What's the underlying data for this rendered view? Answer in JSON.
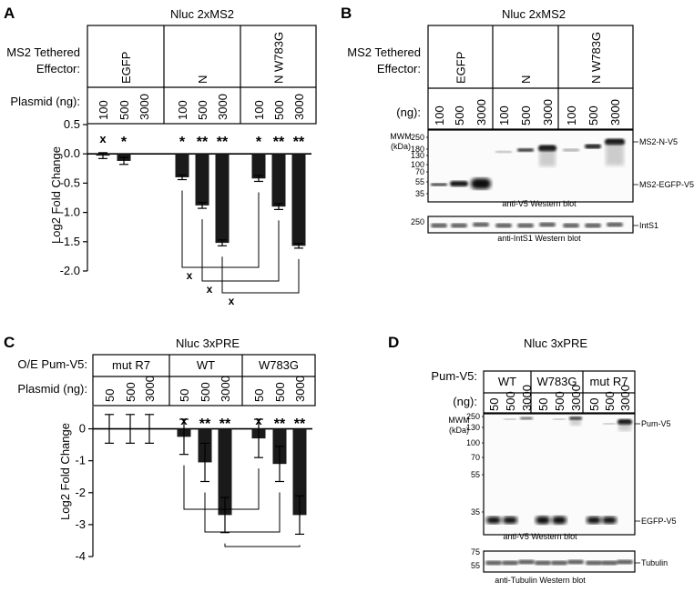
{
  "panels": {
    "a": {
      "letter": "A",
      "title": "Nluc 2xMS2",
      "row1_label": [
        "MS2 Tethered",
        "Effector:"
      ],
      "groups": [
        "EGFP",
        "N",
        "N W783G"
      ],
      "row2_label": "Plasmid (ng):",
      "doses": [
        "100",
        "500",
        "3000",
        "100",
        "500",
        "3000",
        "100",
        "500",
        "3000"
      ],
      "ylabel": "Log2  Fold Change",
      "yticks": [
        "0.5",
        "0.0",
        "-0.5",
        "-1.0",
        "-1.5",
        "-2.0"
      ],
      "sig": [
        "x",
        "*",
        "",
        "*",
        "**",
        "**",
        "*",
        "**",
        "**"
      ],
      "bracket_marks": [
        "x",
        "x",
        "x"
      ]
    },
    "b": {
      "letter": "B",
      "title": "Nluc 2xMS2",
      "row1_label": [
        "MS2 Tethered",
        "Effector:"
      ],
      "groups": [
        "EGFP",
        "N",
        "N W783G"
      ],
      "row2_label": "(ng):",
      "doses": [
        "100",
        "500",
        "3000",
        "100",
        "500",
        "3000",
        "100",
        "500",
        "3000"
      ],
      "mwm": [
        "MWM",
        "(kDa)"
      ],
      "markers": [
        "250",
        "180",
        "130",
        "100",
        "70",
        "55",
        "35"
      ],
      "band_labels": [
        "MS2-N-V5",
        "MS2-EGFP-V5"
      ],
      "blot1_caption": "anti-V5 Western blot",
      "blot2_marker": "250",
      "blot2_label": "IntS1",
      "blot2_caption": "anti-IntS1 Western blot"
    },
    "c": {
      "letter": "C",
      "title": "Nluc 3xPRE",
      "row1_label": "O/E Pum-V5:",
      "groups": [
        "mut R7",
        "WT",
        "W783G"
      ],
      "row2_label": "Plasmid (ng):",
      "doses": [
        "50",
        "500",
        "3000",
        "50",
        "500",
        "3000",
        "50",
        "500",
        "3000"
      ],
      "ylabel": "Log2  Fold Change",
      "yticks": [
        "0",
        "-1",
        "-2",
        "-3",
        "-4"
      ],
      "sig": [
        "",
        "",
        "",
        "x",
        "**",
        "**",
        "x",
        "**",
        "**"
      ]
    },
    "d": {
      "letter": "D",
      "title": "Nluc 3xPRE",
      "row1_label": "Pum-V5:",
      "groups": [
        "WT",
        "W783G",
        "mut R7"
      ],
      "row2_label": "(ng):",
      "doses": [
        "50",
        "500",
        "3000",
        "50",
        "500",
        "3000",
        "50",
        "500",
        "3000"
      ],
      "mwm": [
        "MWM",
        "(kDa)"
      ],
      "markers": [
        "250",
        "130",
        "100",
        "70",
        "55",
        "35"
      ],
      "band_labels": [
        "Pum-V5",
        "EGFP-V5"
      ],
      "blot1_caption": "anti-V5 Western blot",
      "blot2_markers": [
        "75",
        "55"
      ],
      "blot2_label": "Tubulin",
      "blot2_caption": "anti-Tubulin Western blot"
    }
  },
  "chart_data": [
    {
      "type": "bar",
      "categories": [
        "EGFP 100",
        "EGFP 500",
        "EGFP 3000",
        "N 100",
        "N 500",
        "N 3000",
        "N W783G 100",
        "N W783G 500",
        "N W783G 3000"
      ],
      "values": [
        -0.03,
        -0.12,
        0.0,
        -0.4,
        -0.88,
        -1.52,
        -0.42,
        -0.9,
        -1.57
      ],
      "errors": [
        0.05,
        0.06,
        0.0,
        0.04,
        0.05,
        0.05,
        0.05,
        0.05,
        0.04
      ],
      "title": "Nluc 2xMS2",
      "ylabel": "Log2  Fold Change",
      "ylim": [
        -2.0,
        0.5
      ]
    },
    {
      "type": "bar",
      "categories": [
        "mut R7 50",
        "mut R7 500",
        "mut R7 3000",
        "WT 50",
        "WT 500",
        "WT 3000",
        "W783G 50",
        "W783G 500",
        "W783G 3000"
      ],
      "values": [
        0.0,
        0.0,
        0.0,
        -0.25,
        -1.05,
        -2.7,
        -0.3,
        -1.1,
        -2.7
      ],
      "errors": [
        0.45,
        0.45,
        0.45,
        0.55,
        0.6,
        0.55,
        0.6,
        0.55,
        0.6
      ],
      "title": "Nluc 3xPRE",
      "ylabel": "Log2  Fold Change",
      "ylim": [
        -4,
        0.7
      ]
    }
  ]
}
